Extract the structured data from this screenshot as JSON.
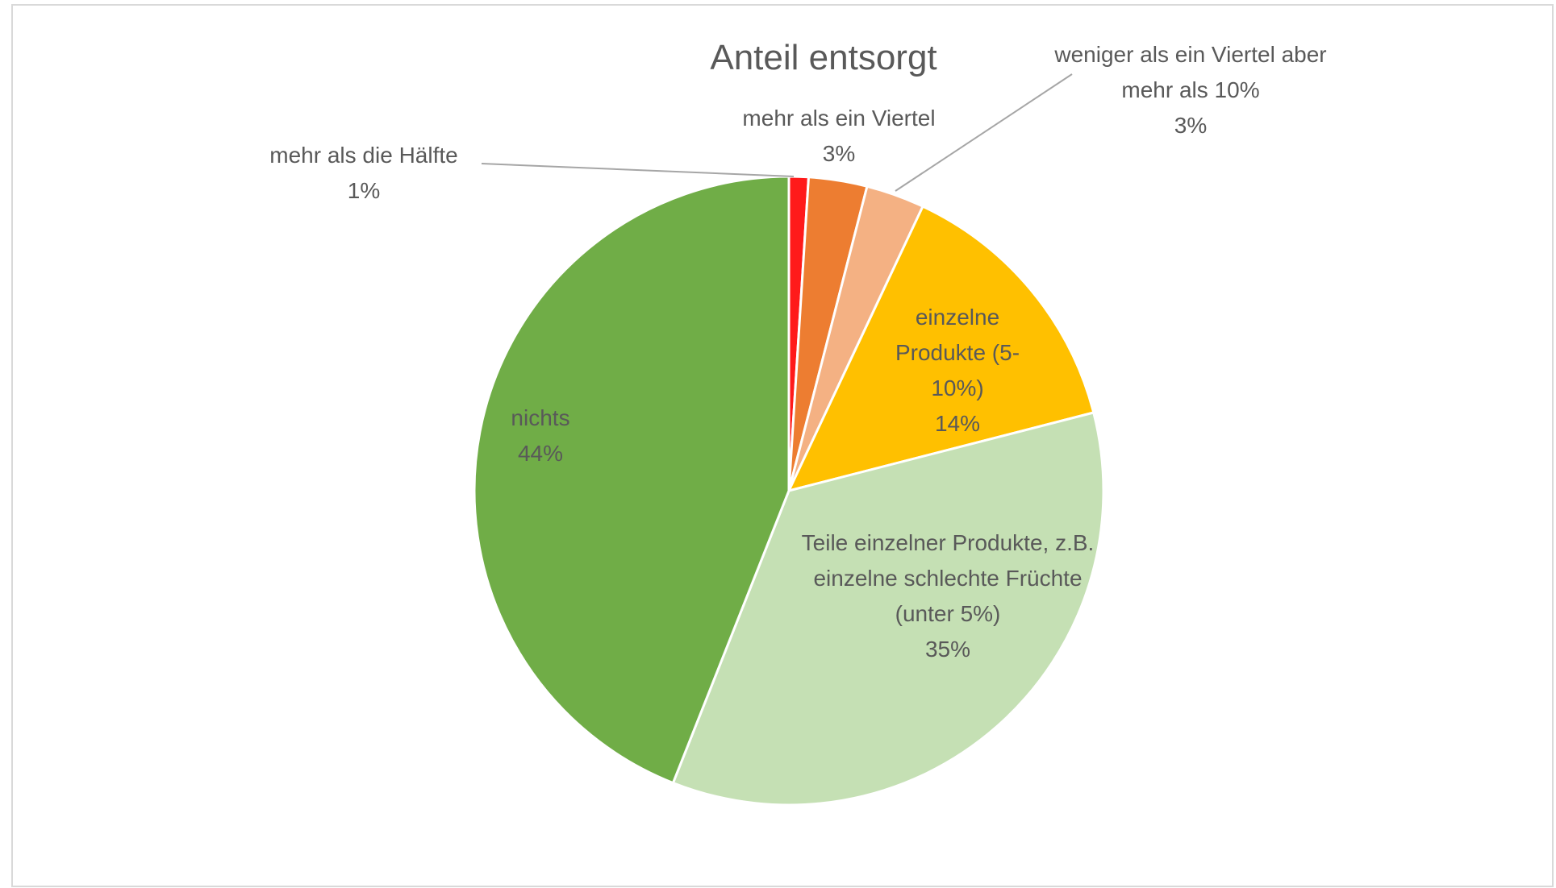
{
  "chart_data": {
    "type": "pie",
    "title": "Anteil entsorgt",
    "categories": [
      "mehr als die Hälfte",
      "mehr als ein Viertel",
      "weniger als ein Viertel aber mehr als 10%",
      "einzelne Produkte (5-10%)",
      "Teile einzelner Produkte, z.B. einzelne schlechte Früchte (unter 5%)",
      "nichts"
    ],
    "values": [
      1,
      3,
      3,
      14,
      35,
      44
    ],
    "value_labels": [
      "1%",
      "3%",
      "3%",
      "14%",
      "35%",
      "44%"
    ],
    "colors": [
      "#ff1a1a",
      "#ed7d31",
      "#f4b183",
      "#ffc000",
      "#c5e0b4",
      "#70ad47"
    ]
  }
}
